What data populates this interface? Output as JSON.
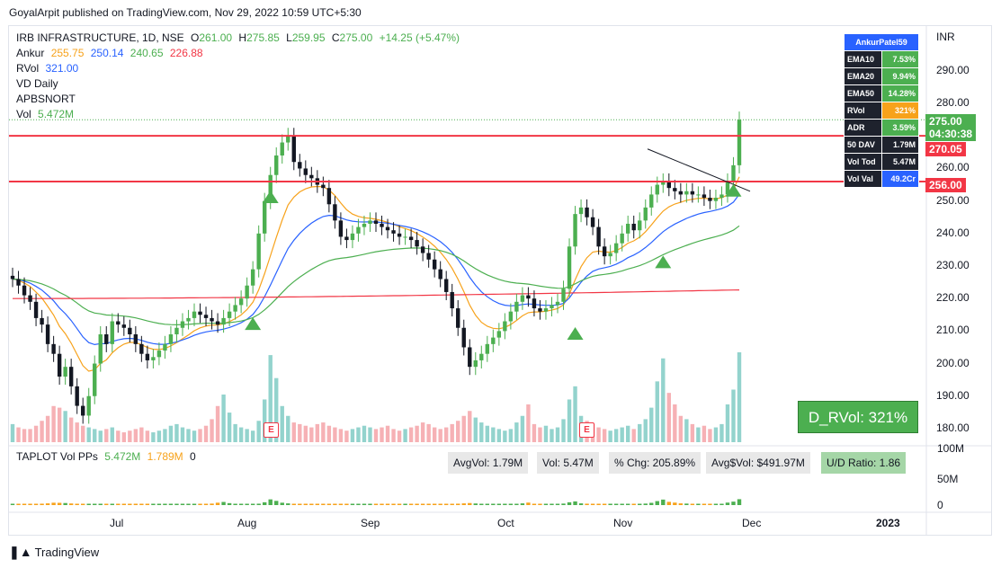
{
  "publisher": "GoyalArpit published on TradingView.com, Nov 29, 2022 10:59 UTC+5:30",
  "legend": {
    "symbol": "IRB INFRASTRUCTURE, 1D, NSE",
    "o_label": "O",
    "o": "261.00",
    "h_label": "H",
    "h": "275.85",
    "l_label": "L",
    "l": "259.95",
    "c_label": "C",
    "c": "275.00",
    "change": "+14.25 (+5.47%)",
    "ankur_label": "Ankur",
    "ankur": [
      "255.75",
      "250.14",
      "240.65",
      "226.88"
    ],
    "rvol_label": "RVol",
    "rvol": "321.00",
    "vd": "VD Daily",
    "apbs": "APBSNORT",
    "vol_label": "Vol",
    "vol": "5.472M"
  },
  "table": {
    "header": "AnkurPatel59",
    "rows": [
      {
        "k": "EMA10",
        "v": "7.53%",
        "style": "v"
      },
      {
        "k": "EMA20",
        "v": "9.94%",
        "style": "v"
      },
      {
        "k": "EMA50",
        "v": "14.28%",
        "style": "v"
      },
      {
        "k": "RVol",
        "v": "321%",
        "style": "vo"
      },
      {
        "k": "ADR",
        "v": "3.59%",
        "style": "v"
      },
      {
        "k": "50 DAV",
        "v": "1.79M",
        "style": "k"
      },
      {
        "k": "Vol Tod",
        "v": "5.47M",
        "style": "k"
      },
      {
        "k": "Vol Val",
        "v": "49.2Cr",
        "style": "vb"
      }
    ]
  },
  "price_axis": {
    "currency": "INR",
    "ticks": [
      "290.00",
      "280.00",
      "270.00",
      "260.00",
      "250.00",
      "240.00",
      "230.00",
      "220.00",
      "210.00",
      "200.00",
      "190.00",
      "180.00"
    ],
    "last_price": "275.00",
    "countdown": "04:30:38",
    "level_upper": "270.05",
    "level_lower": "256.00"
  },
  "volume_axis": [
    "100M",
    "50M",
    "0"
  ],
  "time_axis": [
    "Jul",
    "Aug",
    "Sep",
    "Oct",
    "Nov",
    "Dec",
    "2023"
  ],
  "drvol": "D_RVol: 321%",
  "lower_pane": {
    "title": "TAPLOT Vol PPs",
    "v1": "5.472M",
    "v2": "1.789M",
    "v3": "0",
    "stats": [
      "AvgVol: 1.79M",
      "Vol: 5.47M",
      "% Chg: 205.89%",
      "Avg$Vol: $491.97M"
    ],
    "ud": "U/D Ratio: 1.86"
  },
  "earnings_mark": "E",
  "tv_logo": "TradingView",
  "colors": {
    "up": "#4caf50",
    "down": "#26a69a",
    "red": "#f23645",
    "ema_orange": "#f7a21b",
    "ema_blue": "#2962ff",
    "ema_green": "#4caf50",
    "ema_red": "#f23645"
  },
  "chart_data": {
    "type": "candlestick",
    "y_range": [
      175,
      298
    ],
    "horizontal_levels": [
      270.05,
      256.0
    ],
    "last_close": 275.0,
    "closes": [
      226,
      224,
      221,
      219,
      214,
      212,
      206,
      203,
      196,
      199,
      193,
      187,
      184,
      190,
      200,
      209,
      206,
      213,
      212,
      211,
      209,
      206,
      203,
      201,
      202,
      204,
      206,
      209,
      211,
      213,
      214,
      216,
      215,
      214,
      213,
      212,
      214,
      216,
      218,
      220,
      224,
      229,
      240,
      250,
      258,
      264,
      268,
      270,
      262,
      260,
      258,
      257,
      255,
      254,
      249,
      244,
      239,
      238,
      240,
      242,
      243,
      244,
      243,
      242,
      241,
      240,
      239,
      239,
      238,
      236,
      234,
      232,
      229,
      226,
      222,
      217,
      211,
      205,
      199,
      201,
      203,
      206,
      208,
      210,
      213,
      216,
      219,
      221,
      220,
      217,
      216,
      217,
      218,
      219,
      223,
      236,
      246,
      248,
      245,
      242,
      236,
      233,
      234,
      237,
      240,
      243,
      241,
      244,
      248,
      252,
      255,
      256,
      254,
      253,
      252,
      253,
      252,
      252,
      251,
      250,
      251,
      252,
      256,
      261,
      275
    ],
    "volumes_m": [
      1.1,
      0.9,
      0.8,
      0.8,
      1.0,
      1.3,
      1.6,
      2.2,
      2.1,
      1.9,
      1.5,
      1.2,
      1.0,
      0.9,
      0.8,
      0.7,
      0.8,
      0.9,
      0.7,
      0.6,
      0.7,
      0.8,
      0.9,
      0.7,
      0.6,
      0.7,
      0.8,
      1.0,
      1.1,
      0.9,
      0.8,
      0.7,
      0.8,
      1.0,
      1.4,
      2.2,
      2.9,
      1.8,
      1.1,
      0.9,
      0.8,
      0.7,
      1.3,
      2.6,
      5.3,
      3.9,
      2.2,
      1.6,
      1.2,
      1.1,
      1.0,
      0.9,
      1.1,
      1.2,
      1.0,
      0.9,
      0.8,
      0.7,
      0.8,
      0.9,
      1.0,
      0.9,
      0.8,
      0.9,
      1.0,
      0.8,
      0.7,
      0.8,
      0.9,
      1.0,
      1.2,
      1.1,
      0.9,
      0.8,
      0.9,
      1.1,
      1.3,
      1.6,
      1.9,
      1.5,
      1.2,
      1.0,
      0.9,
      0.8,
      0.7,
      0.8,
      1.2,
      1.6,
      2.3,
      1.1,
      0.9,
      1.0,
      0.8,
      0.9,
      1.4,
      2.6,
      3.4,
      1.6,
      1.3,
      1.1,
      0.9,
      0.8,
      0.7,
      0.8,
      0.9,
      1.0,
      0.8,
      1.1,
      1.4,
      2.1,
      3.7,
      5.1,
      3.0,
      2.3,
      1.6,
      1.4,
      1.1,
      0.9,
      1.0,
      0.8,
      0.9,
      1.1,
      2.3,
      3.2,
      5.47
    ]
  }
}
